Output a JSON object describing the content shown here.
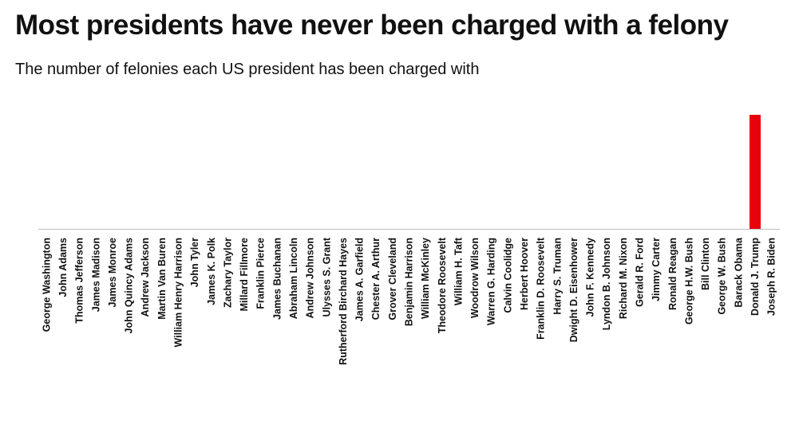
{
  "header": {
    "title": "Most presidents have never been charged with a felony",
    "subtitle": "The number of felonies each US president has been charged with"
  },
  "colors": {
    "bar": "#e8000b",
    "axis": "#bbbbbb",
    "text": "#111111"
  },
  "chart_data": {
    "type": "bar",
    "title": "Most presidents have never been charged with a felony",
    "subtitle": "The number of felonies each US president has been charged with",
    "xlabel": "",
    "ylabel": "",
    "ylim": [
      0,
      34
    ],
    "grid": false,
    "categories": [
      "George Washington",
      "John Adams",
      "Thomas Jefferson",
      "James Madison",
      "James Monroe",
      "John Quincy Adams",
      "Andrew Jackson",
      "Martin Van Buren",
      "William Henry Harrison",
      "John Tyler",
      "James K. Polk",
      "Zachary Taylor",
      "Millard Fillmore",
      "Franklin Pierce",
      "James Buchanan",
      "Abraham Lincoln",
      "Andrew Johnson",
      "Ulysses S. Grant",
      "Rutherford Birchard Hayes",
      "James A. Garfield",
      "Chester A. Arthur",
      "Grover Cleveland",
      "Benjamin Harrison",
      "William McKinley",
      "Theodore Roosevelt",
      "William H. Taft",
      "Woodrow Wilson",
      "Warren G. Harding",
      "Calvin Coolidge",
      "Herbert Hoover",
      "Franklin D. Roosevelt",
      "Harry S. Truman",
      "Dwight D. Eisenhower",
      "John F. Kennedy",
      "Lyndon B. Johnson",
      "Richard M. Nixon",
      "Gerald R. Ford",
      "Jimmy Carter",
      "Ronald Reagan",
      "George H.W. Bush",
      "Bill Clinton",
      "George W. Bush",
      "Barack Obama",
      "Donald J. Trump",
      "Joseph R. Biden"
    ],
    "values": [
      0,
      0,
      0,
      0,
      0,
      0,
      0,
      0,
      0,
      0,
      0,
      0,
      0,
      0,
      0,
      0,
      0,
      0,
      0,
      0,
      0,
      0,
      0,
      0,
      0,
      0,
      0,
      0,
      0,
      0,
      0,
      0,
      0,
      0,
      0,
      0,
      0,
      0,
      0,
      0,
      0,
      0,
      0,
      34,
      0
    ]
  }
}
